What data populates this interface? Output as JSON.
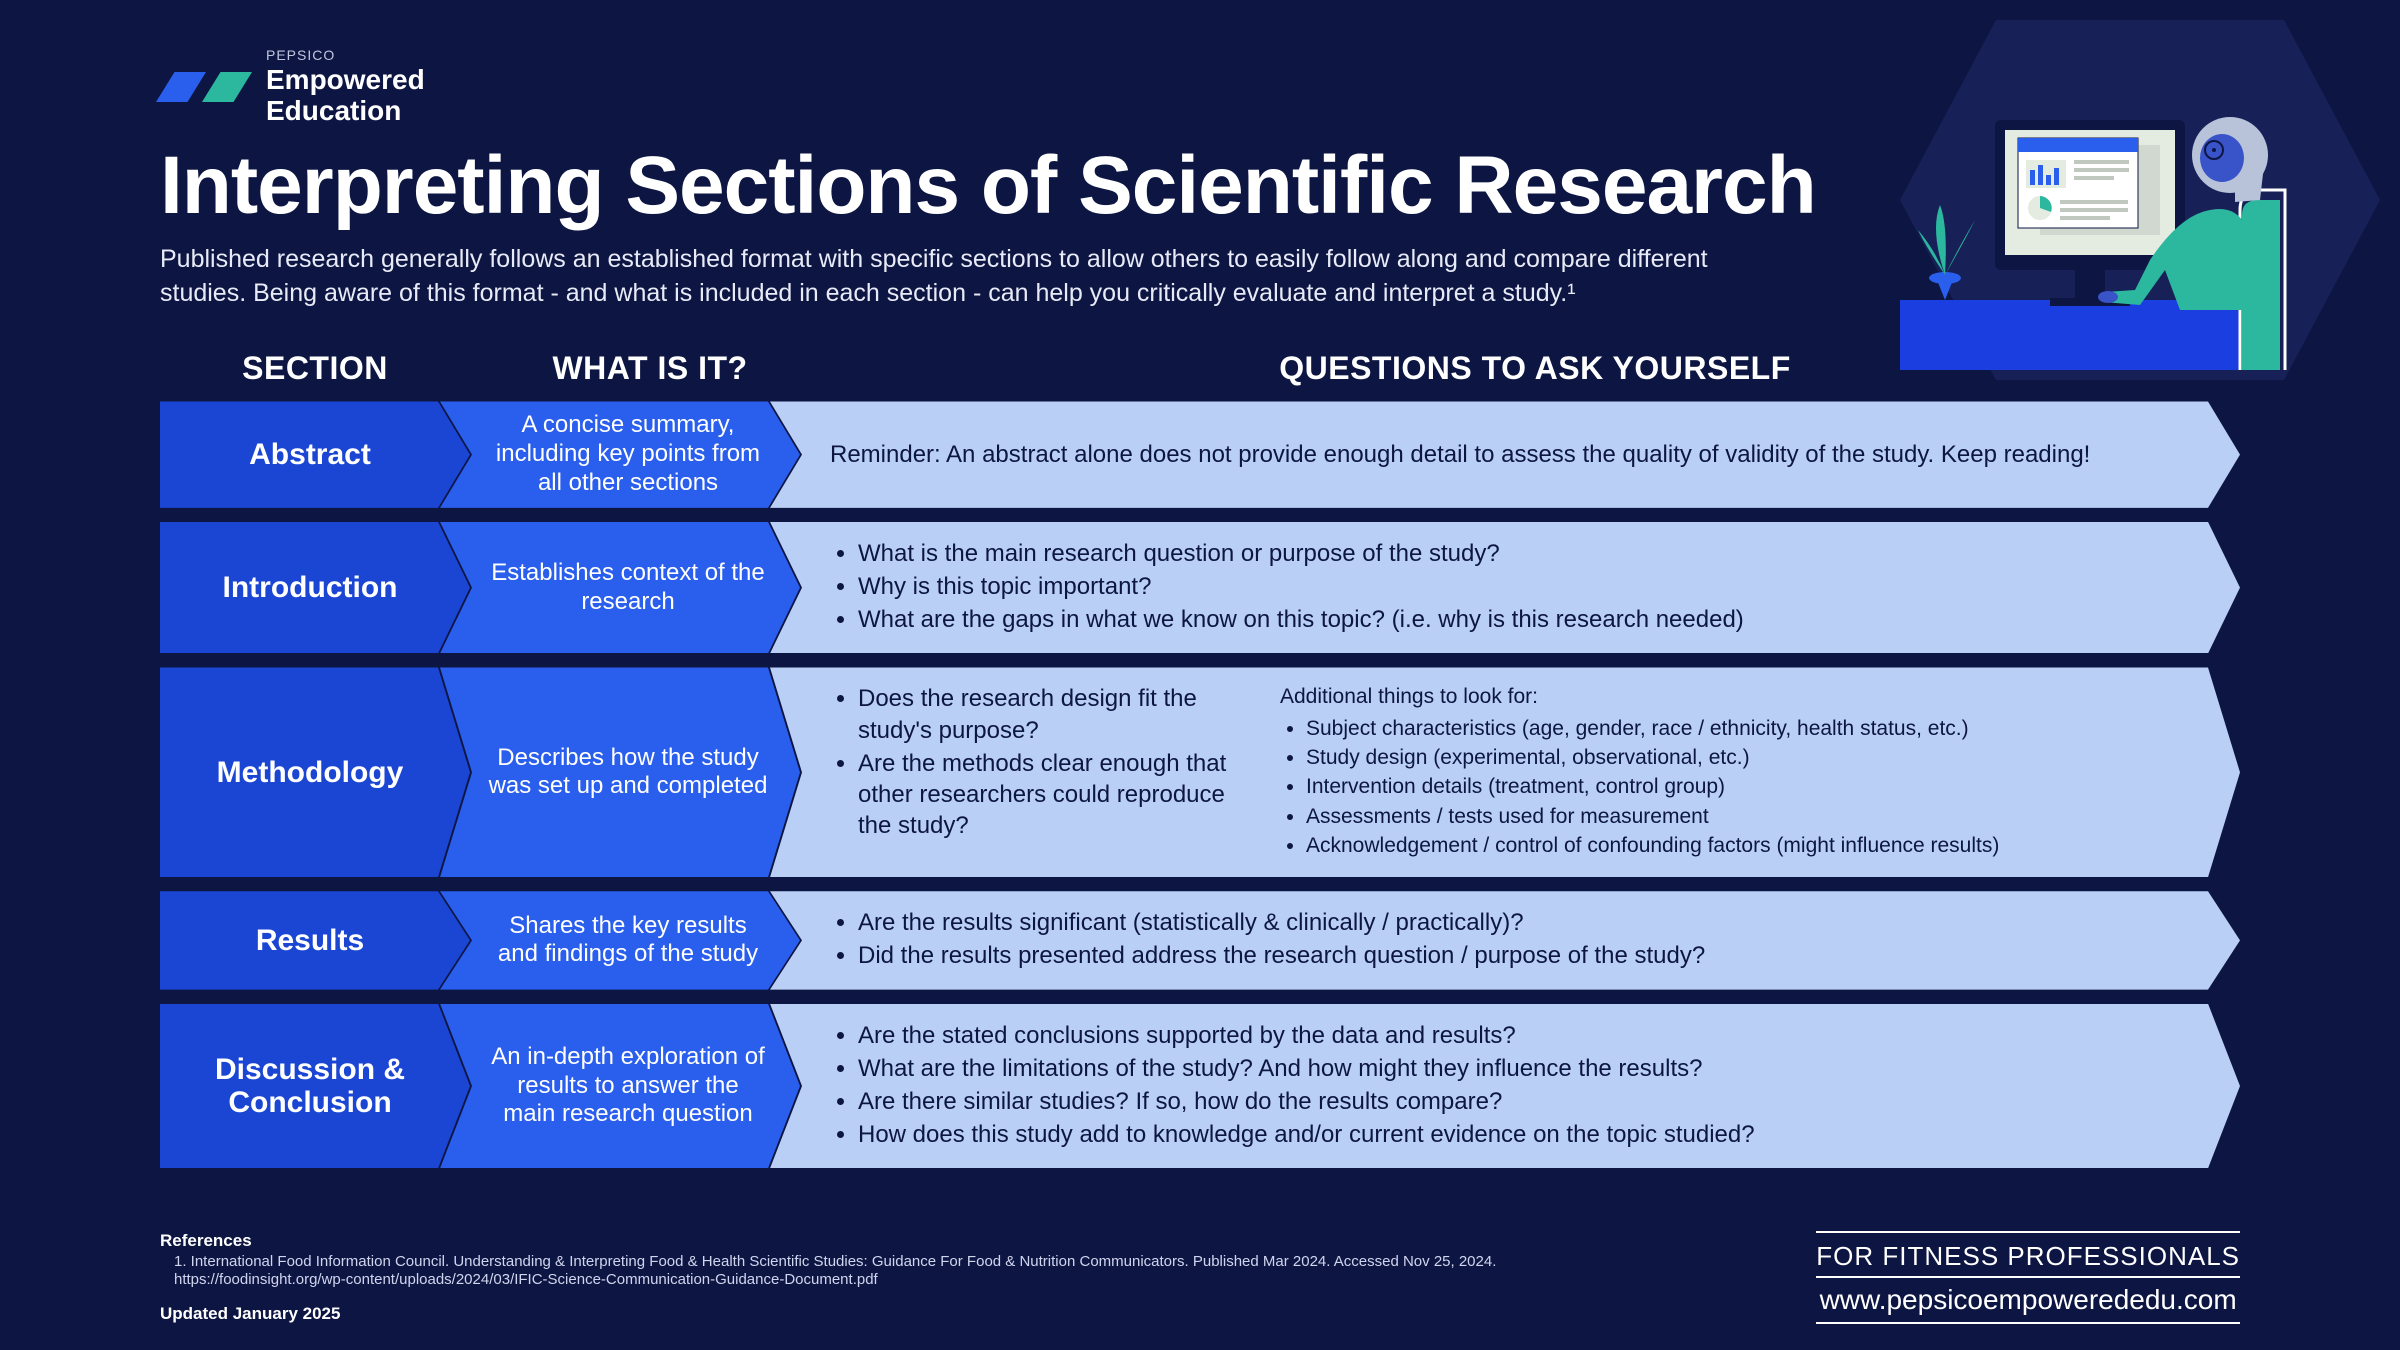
{
  "brand": {
    "company": "PEPSICO",
    "line1": "Empowered",
    "line2": "Education",
    "logo_colors": [
      "#2a5eed",
      "#2bb89e"
    ]
  },
  "title": "Interpreting Sections of Scientific Research",
  "subtitle": "Published research generally follows an established format with specific sections to allow others to easily follow along and compare different studies. Being aware of this format - and what is included in each section - can help you critically evaluate and interpret a study.¹",
  "headers": {
    "section": "SECTION",
    "what": "WHAT IS IT?",
    "questions": "QUESTIONS TO ASK YOURSELF"
  },
  "rows": [
    {
      "section": "Abstract",
      "what": "A concise summary, including key points from all other sections",
      "questions_text": "Reminder: An abstract alone does not provide enough detail to assess the quality of validity of the study. Keep reading!",
      "colors": {
        "c1": "#1b46d4",
        "c2": "#2a5eed",
        "c3": "#b9cff5"
      }
    },
    {
      "section": "Introduction",
      "what": "Establishes context of the research",
      "questions_list": [
        "What is the main research question or purpose of the study?",
        "Why is this topic important?",
        "What are the gaps in what we know on this topic? (i.e. why is this research needed)"
      ],
      "colors": {
        "c1": "#1b46d4",
        "c2": "#2a5eed",
        "c3": "#b9cff5"
      }
    },
    {
      "section": "Methodology",
      "what": "Describes how the study was set up and completed",
      "questions_split": {
        "left": [
          "Does the research design fit the study's purpose?",
          "Are the methods clear enough that other researchers could reproduce the study?"
        ],
        "right_title": "Additional things to look for:",
        "right": [
          "Subject characteristics (age, gender, race / ethnicity, health status, etc.)",
          "Study design (experimental, observational, etc.)",
          "Intervention details (treatment, control group)",
          "Assessments / tests used for measurement",
          "Acknowledgement / control of confounding factors (might influence results)"
        ]
      },
      "colors": {
        "c1": "#1b46d4",
        "c2": "#2a5eed",
        "c3": "#b9cff5"
      }
    },
    {
      "section": "Results",
      "what": "Shares the key results and findings of the study",
      "questions_list": [
        "Are the results significant (statistically & clinically / practically)?",
        "Did the results presented address the research question / purpose of the study?"
      ],
      "colors": {
        "c1": "#1b46d4",
        "c2": "#2a5eed",
        "c3": "#b9cff5"
      }
    },
    {
      "section": "Discussion & Conclusion",
      "what": "An in-depth exploration of results to answer the main research question",
      "questions_list": [
        "Are the stated conclusions supported by the data and results?",
        "What are the limitations of the study? And how might they influence the results?",
        "Are there similar studies? If so, how do the results compare?",
        "How does this study add to knowledge and/or current evidence on the topic studied?"
      ],
      "colors": {
        "c1": "#1b46d4",
        "c2": "#2a5eed",
        "c3": "#b9cff5"
      }
    }
  ],
  "references": {
    "title": "References",
    "body": "1. International Food Information Council. Understanding & Interpreting Food & Health Scientific Studies: Guidance For Food & Nutrition Communicators. Published Mar 2024. Accessed Nov 25, 2024. https://foodinsight.org/wp-content/uploads/2024/03/IFIC-Science-Communication-Guidance-Document.pdf"
  },
  "updated": "Updated January 2025",
  "footer_right": {
    "line1": "FOR FITNESS PROFESSIONALS",
    "line2": "www.pepsicoempowerededu.com"
  },
  "style": {
    "background": "#0d1642",
    "text_primary": "#ffffff",
    "text_dark": "#0d1642",
    "title_fontsize": 82,
    "subtitle_fontsize": 25,
    "header_fontsize": 32,
    "section_fontsize": 30,
    "body_fontsize": 24
  },
  "illustration": {
    "hex_bg": "#172157",
    "desk": "#1b3ee0",
    "monitor_frame": "#0d1642",
    "monitor_screen": "#e4ebe0",
    "window": "#ffffff",
    "accent_bar": "#2a5eed",
    "accent_dot": "#2bb89e",
    "person_hair": "#b8c2d9",
    "person_skin": "#3953c9",
    "person_shirt": "#2bb89e",
    "chair": "#2bb89e",
    "plant_pot": "#2a5eed",
    "plant_leaf": "#2bb89e"
  }
}
